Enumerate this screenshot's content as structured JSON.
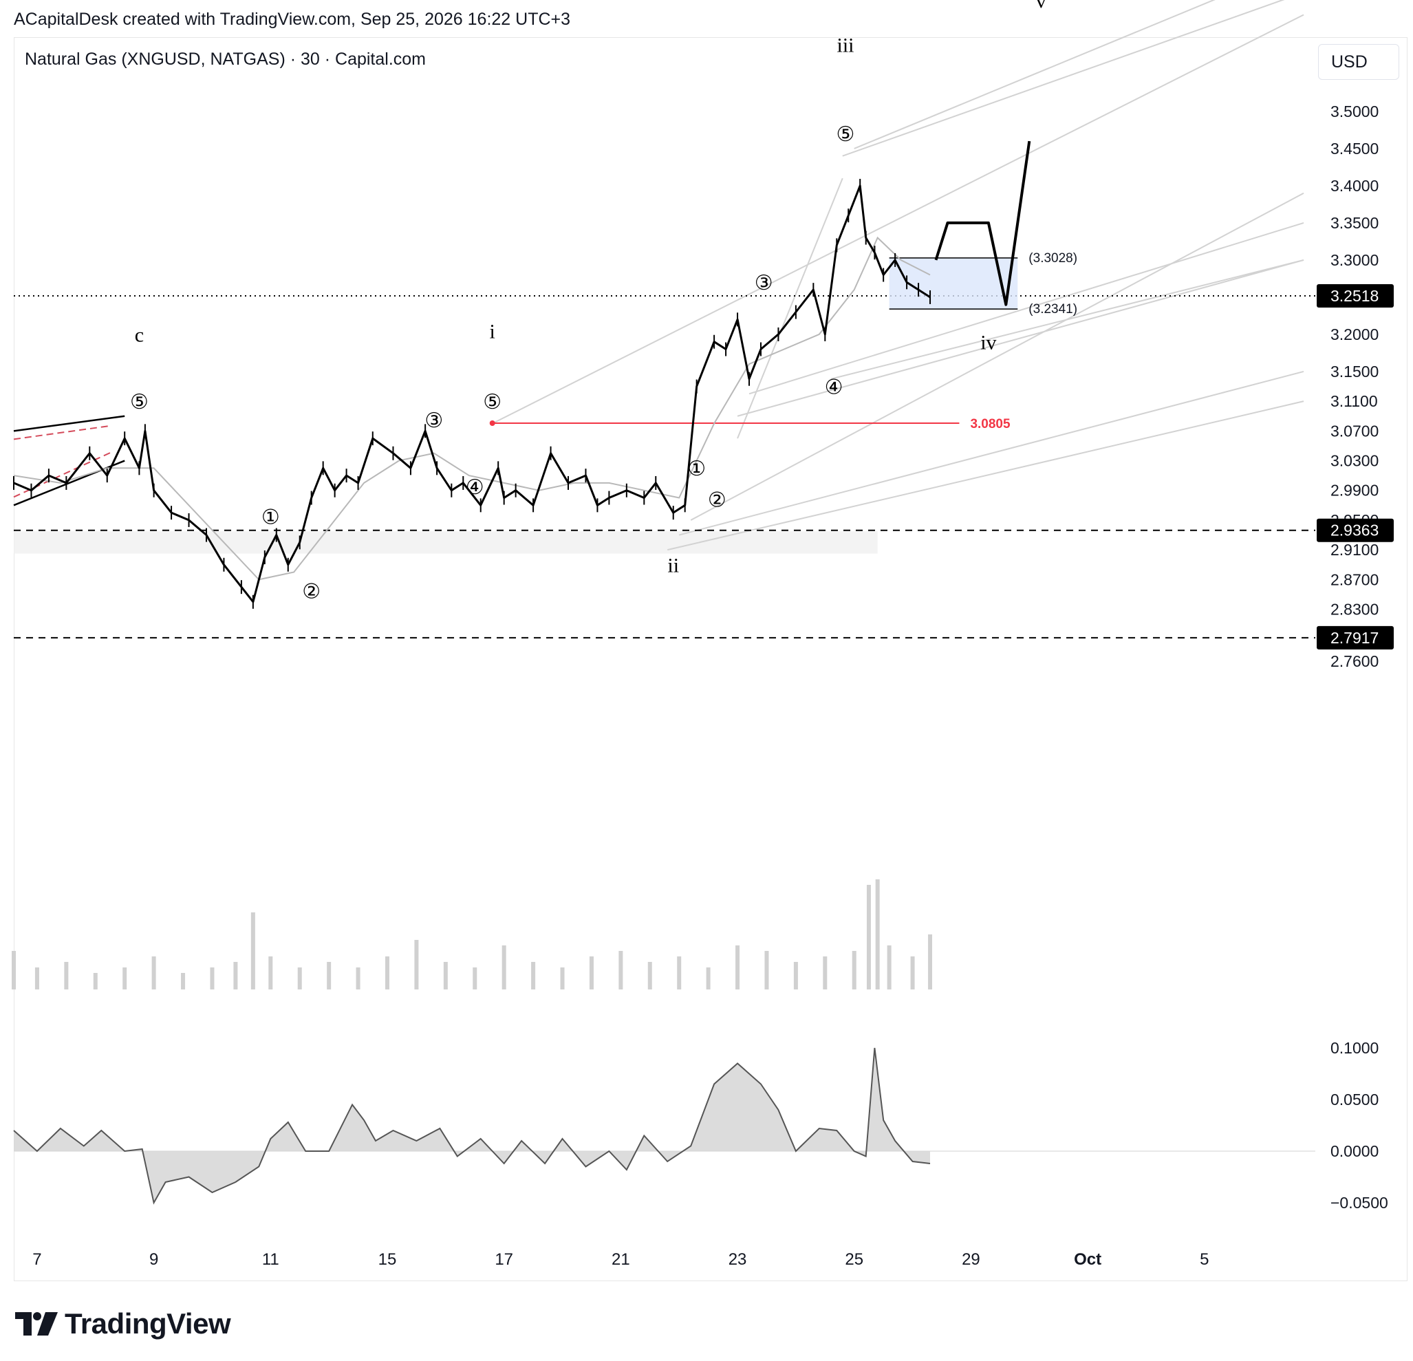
{
  "header": {
    "attribution": "ACapitalDesk created with TradingView.com, Sep 25, 2026 16:22 UTC+3"
  },
  "chart": {
    "symbol": "Natural Gas (XNGUSD, NATGAS) · 30 · Capital.com",
    "currency": "USD"
  },
  "footer": {
    "brand": "TradingView",
    "logo_icon": "tradingview-logo-icon"
  },
  "chart_data": {
    "type": "line",
    "title": "",
    "xlabel": "",
    "ylabel": "",
    "x_ticks": [
      "7",
      "9",
      "11",
      "15",
      "17",
      "21",
      "23",
      "25",
      "29",
      "Oct",
      "5"
    ],
    "x_tick_index": [
      0,
      2,
      4,
      6,
      8,
      10,
      12,
      14,
      16,
      18,
      20
    ],
    "xlim": [
      -0.4,
      21.9
    ],
    "price_ticks": [
      "3.5000",
      "3.4500",
      "3.4000",
      "3.3500",
      "3.3000",
      "3.2000",
      "3.1500",
      "3.1100",
      "3.0700",
      "3.0300",
      "2.9900",
      "2.9500",
      "2.9100",
      "2.8700",
      "2.8300",
      "2.7600"
    ],
    "price_tick_values": [
      3.5,
      3.45,
      3.4,
      3.35,
      3.3,
      3.2,
      3.15,
      3.11,
      3.07,
      3.03,
      2.99,
      2.95,
      2.91,
      2.87,
      2.83,
      2.76
    ],
    "price_labels": [
      {
        "value": 3.2518,
        "text": "3.2518",
        "style": "current",
        "line": "dotted"
      },
      {
        "value": 2.9363,
        "text": "2.9363",
        "style": "level",
        "line": "dashed"
      },
      {
        "value": 2.7917,
        "text": "2.7917",
        "style": "level",
        "line": "dashed"
      }
    ],
    "osc_ticks": [
      "0.1000",
      "0.0500",
      "0.0000",
      "−0.0500"
    ],
    "osc_tick_values": [
      0.1,
      0.05,
      0.0,
      -0.05
    ],
    "series": [
      {
        "pane": "price",
        "style": "candles",
        "x": [
          -0.4,
          -0.1,
          0.2,
          0.5,
          0.9,
          1.2,
          1.5,
          1.75,
          1.85,
          2.0,
          2.3,
          2.6,
          2.9,
          3.2,
          3.5,
          3.7,
          3.9,
          4.1,
          4.3,
          4.5,
          4.7,
          4.9,
          5.1,
          5.3,
          5.5,
          5.75,
          6.1,
          6.4,
          6.65,
          6.85,
          7.1,
          7.3,
          7.6,
          7.9,
          8.0,
          8.2,
          8.5,
          8.8,
          9.1,
          9.4,
          9.6,
          9.8,
          10.1,
          10.4,
          10.6,
          10.9,
          11.1,
          11.3,
          11.6,
          11.8,
          12.0,
          12.2,
          12.4,
          12.7,
          13.0,
          13.3,
          13.5,
          13.7,
          13.9,
          14.1,
          14.2,
          14.35,
          14.5,
          14.7,
          14.9,
          15.1,
          15.3
        ],
        "y": [
          3.0,
          2.99,
          3.01,
          3.0,
          3.04,
          3.01,
          3.06,
          3.02,
          3.07,
          2.99,
          2.96,
          2.95,
          2.93,
          2.89,
          2.86,
          2.84,
          2.9,
          2.93,
          2.89,
          2.92,
          2.98,
          3.02,
          2.99,
          3.01,
          3.0,
          3.06,
          3.04,
          3.02,
          3.07,
          3.02,
          2.99,
          3.0,
          2.97,
          3.02,
          2.98,
          2.99,
          2.97,
          3.04,
          3.0,
          3.01,
          2.97,
          2.98,
          2.99,
          2.98,
          3.0,
          2.96,
          2.97,
          3.13,
          3.19,
          3.18,
          3.22,
          3.14,
          3.18,
          3.2,
          3.23,
          3.26,
          3.2,
          3.32,
          3.36,
          3.4,
          3.33,
          3.31,
          3.28,
          3.3,
          3.27,
          3.26,
          3.25
        ]
      },
      {
        "pane": "price",
        "style": "moving-average",
        "x": [
          -0.4,
          0.4,
          1.2,
          2.0,
          2.6,
          3.2,
          3.8,
          4.4,
          5.0,
          5.6,
          6.2,
          6.8,
          7.4,
          8.0,
          8.6,
          9.2,
          9.8,
          10.4,
          11.0,
          11.6,
          12.2,
          12.8,
          13.4,
          14.0,
          14.4,
          14.8,
          15.3
        ],
        "y": [
          3.01,
          3.0,
          3.02,
          3.02,
          2.97,
          2.92,
          2.87,
          2.88,
          2.94,
          3.0,
          3.03,
          3.04,
          3.01,
          3.0,
          2.99,
          3.0,
          3.0,
          2.99,
          2.98,
          3.08,
          3.16,
          3.18,
          3.2,
          3.26,
          3.33,
          3.3,
          3.28
        ]
      },
      {
        "pane": "price",
        "style": "drawing-projection",
        "x": [
          15.4,
          15.6,
          16.3,
          16.6,
          17.0
        ],
        "y": [
          3.3,
          3.35,
          3.35,
          3.24,
          3.46
        ]
      },
      {
        "pane": "volume",
        "style": "volume",
        "x": [
          -0.4,
          0.0,
          0.5,
          1.0,
          1.5,
          2.0,
          2.5,
          3.0,
          3.4,
          3.7,
          4.0,
          4.5,
          5.0,
          5.5,
          6.0,
          6.5,
          7.0,
          7.5,
          8.0,
          8.5,
          9.0,
          9.5,
          10.0,
          10.5,
          11.0,
          11.5,
          12.0,
          12.5,
          13.0,
          13.5,
          14.0,
          14.25,
          14.4,
          14.6,
          15.0,
          15.3
        ],
        "y": [
          0.35,
          0.2,
          0.25,
          0.15,
          0.2,
          0.3,
          0.15,
          0.2,
          0.25,
          0.7,
          0.3,
          0.2,
          0.25,
          0.2,
          0.3,
          0.45,
          0.25,
          0.2,
          0.4,
          0.25,
          0.2,
          0.3,
          0.35,
          0.25,
          0.3,
          0.2,
          0.4,
          0.35,
          0.25,
          0.3,
          0.35,
          0.95,
          1.0,
          0.4,
          0.3,
          0.5
        ]
      },
      {
        "pane": "oscillator",
        "style": "area",
        "x": [
          -0.4,
          0.0,
          0.4,
          0.8,
          1.1,
          1.5,
          1.8,
          2.0,
          2.2,
          2.6,
          3.0,
          3.4,
          3.8,
          4.0,
          4.3,
          4.6,
          5.0,
          5.4,
          5.6,
          5.8,
          6.1,
          6.5,
          6.9,
          7.2,
          7.6,
          8.0,
          8.3,
          8.7,
          9.0,
          9.4,
          9.8,
          10.1,
          10.4,
          10.8,
          11.2,
          11.6,
          12.0,
          12.4,
          12.7,
          13.0,
          13.4,
          13.7,
          14.0,
          14.2,
          14.35,
          14.5,
          14.7,
          15.0,
          15.3
        ],
        "y": [
          0.02,
          0.0,
          0.022,
          0.005,
          0.02,
          0.0,
          0.002,
          -0.05,
          -0.03,
          -0.025,
          -0.04,
          -0.03,
          -0.015,
          0.012,
          0.028,
          0.0,
          0.0,
          0.045,
          0.03,
          0.01,
          0.02,
          0.01,
          0.022,
          -0.005,
          0.012,
          -0.012,
          0.01,
          -0.012,
          0.012,
          -0.015,
          0.0,
          -0.018,
          0.015,
          -0.01,
          0.005,
          0.065,
          0.085,
          0.065,
          0.04,
          0.0,
          0.022,
          0.02,
          0.0,
          -0.005,
          0.1,
          0.03,
          0.01,
          -0.01,
          -0.012
        ]
      }
    ],
    "price_levels": [
      {
        "value": 3.0805,
        "text": "3.0805",
        "color": "#f23645"
      }
    ],
    "box": {
      "x_start": 14.6,
      "x_end": 16.8,
      "top": 3.3028,
      "bottom": 3.2341,
      "top_label": "(3.3028)",
      "bottom_label": "(3.2341)"
    },
    "wave_labels": [
      {
        "text": "c",
        "x": 1.75,
        "y": 3.19
      },
      {
        "text": "⑤",
        "x": 1.75,
        "y": 3.1
      },
      {
        "text": "①",
        "x": 4.0,
        "y": 2.945
      },
      {
        "text": "②",
        "x": 4.7,
        "y": 2.845
      },
      {
        "text": "③",
        "x": 6.8,
        "y": 3.075
      },
      {
        "text": "④",
        "x": 7.5,
        "y": 2.985
      },
      {
        "text": "i",
        "x": 7.8,
        "y": 3.195
      },
      {
        "text": "⑤",
        "x": 7.8,
        "y": 3.1
      },
      {
        "text": "①",
        "x": 11.3,
        "y": 3.01
      },
      {
        "text": "②",
        "x": 11.65,
        "y": 2.968
      },
      {
        "text": "ii",
        "x": 10.9,
        "y": 2.88
      },
      {
        "text": "③",
        "x": 12.45,
        "y": 3.26
      },
      {
        "text": "④",
        "x": 13.65,
        "y": 3.12
      },
      {
        "text": "iii",
        "x": 13.85,
        "y": 3.58
      },
      {
        "text": "⑤",
        "x": 13.85,
        "y": 3.46
      },
      {
        "text": "iv",
        "x": 16.3,
        "y": 3.18
      },
      {
        "text": "v",
        "x": 17.2,
        "y": 3.64
      }
    ],
    "channel_lines": [
      {
        "x": [
          7.8,
          21.7
        ],
        "y": [
          3.08,
          3.63
        ]
      },
      {
        "x": [
          13.8,
          21.7
        ],
        "y": [
          3.44,
          3.66
        ]
      },
      {
        "x": [
          14.0,
          21.7
        ],
        "y": [
          3.45,
          3.7
        ]
      },
      {
        "x": [
          11.2,
          21.7
        ],
        "y": [
          2.95,
          3.39
        ]
      },
      {
        "x": [
          10.8,
          21.7
        ],
        "y": [
          2.91,
          3.11
        ]
      },
      {
        "x": [
          11.0,
          21.7
        ],
        "y": [
          2.93,
          3.15
        ]
      },
      {
        "x": [
          12.0,
          21.7
        ],
        "y": [
          3.09,
          3.3
        ]
      },
      {
        "x": [
          12.2,
          21.7
        ],
        "y": [
          3.12,
          3.35
        ]
      },
      {
        "x": [
          13.6,
          21.7
        ],
        "y": [
          3.14,
          3.3
        ]
      },
      {
        "x": [
          12.0,
          13.8
        ],
        "y": [
          3.06,
          3.41
        ]
      }
    ],
    "support_zone": {
      "x_start": -0.4,
      "x_end": 14.4,
      "top": 2.935,
      "bottom": 2.905
    },
    "pre_wedge": {
      "x": [
        -0.4,
        1.5
      ],
      "top": [
        3.07,
        3.09
      ],
      "bottom": [
        2.97,
        3.03
      ]
    }
  }
}
